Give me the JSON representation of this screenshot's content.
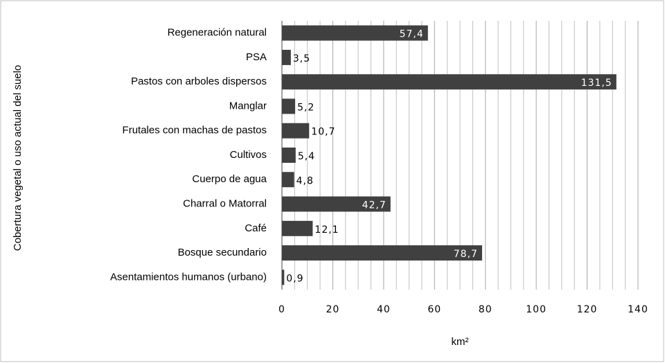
{
  "chart_data": {
    "type": "bar",
    "orientation": "horizontal",
    "ylabel": "Cobertura vegetal o uso actual del suelo",
    "xlabel": "km²",
    "categories": [
      "Regeneración natural",
      "PSA",
      "Pastos con arboles dispersos",
      "Manglar",
      "Frutales con machas de pastos",
      "Cultivos",
      "Cuerpo de agua",
      "Charral o Matorral",
      "Café",
      "Bosque secundario",
      "Asentamientos humanos (urbano)"
    ],
    "values": [
      57.4,
      3.5,
      131.5,
      5.2,
      10.7,
      5.4,
      4.8,
      42.7,
      12.1,
      78.7,
      0.9
    ],
    "value_labels": [
      "57,4",
      "3,5",
      "131,5",
      "5,2",
      "10,7",
      "5,4",
      "4,8",
      "42,7",
      "12,1",
      "78,7",
      "0,9"
    ],
    "color": "#404040",
    "xlim": [
      0,
      140
    ],
    "xticks": [
      0,
      20,
      40,
      60,
      80,
      100,
      120,
      140
    ],
    "xminor": [
      5,
      10,
      15,
      25,
      30,
      35,
      45,
      50,
      55,
      65,
      70,
      75,
      85,
      90,
      95,
      105,
      110,
      115,
      125,
      130,
      135
    ],
    "grid": true
  }
}
